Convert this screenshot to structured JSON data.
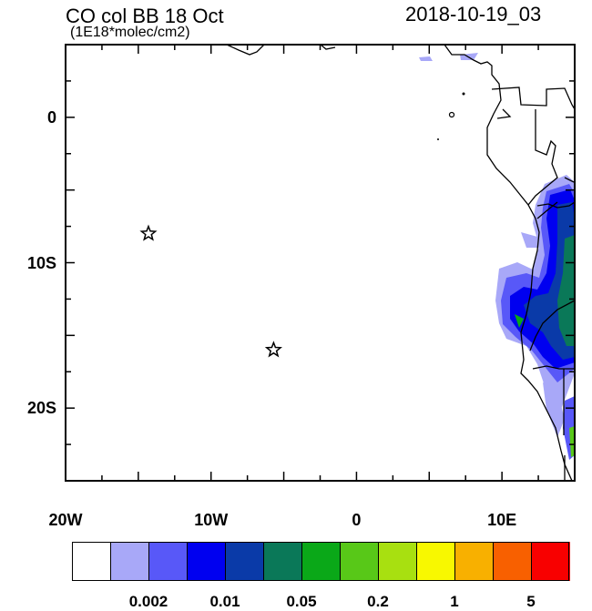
{
  "header": {
    "title": "CO col BB 18 Oct",
    "subtitle": "(1E18*molec/cm2)",
    "timestamp": "2018-10-19_03"
  },
  "map": {
    "lat_range": [
      -25,
      5
    ],
    "lon_range": [
      -20,
      15
    ],
    "y_ticks": [
      {
        "lat": 0,
        "label": "0"
      },
      {
        "lat": -10,
        "label": "10S"
      },
      {
        "lat": -20,
        "label": "20S"
      }
    ],
    "x_ticks": [
      {
        "lon": -20,
        "label": "20W"
      },
      {
        "lon": -10,
        "label": "10W"
      },
      {
        "lon": 0,
        "label": "0"
      },
      {
        "lon": 10,
        "label": "10E"
      }
    ],
    "markers": [
      {
        "type": "star",
        "lon": -14.3,
        "lat": -8
      },
      {
        "type": "star",
        "lon": -5.7,
        "lat": -16
      }
    ],
    "ocean_color": "#ffffff",
    "coast_color": "#000000"
  },
  "colorbar": {
    "colors": [
      "#ffffff",
      "#a8a8f8",
      "#5858f8",
      "#0000f0",
      "#0a3aa8",
      "#0a7858",
      "#0aa818",
      "#58c818",
      "#a8e010",
      "#f8f800",
      "#f8b000",
      "#f86000",
      "#f80000"
    ],
    "labels": [
      {
        "after_index": 1,
        "text": "0.002"
      },
      {
        "after_index": 3,
        "text": "0.01"
      },
      {
        "after_index": 5,
        "text": "0.05"
      },
      {
        "after_index": 7,
        "text": "0.2"
      },
      {
        "after_index": 9,
        "text": "1"
      },
      {
        "after_index": 11,
        "text": "5"
      }
    ]
  }
}
